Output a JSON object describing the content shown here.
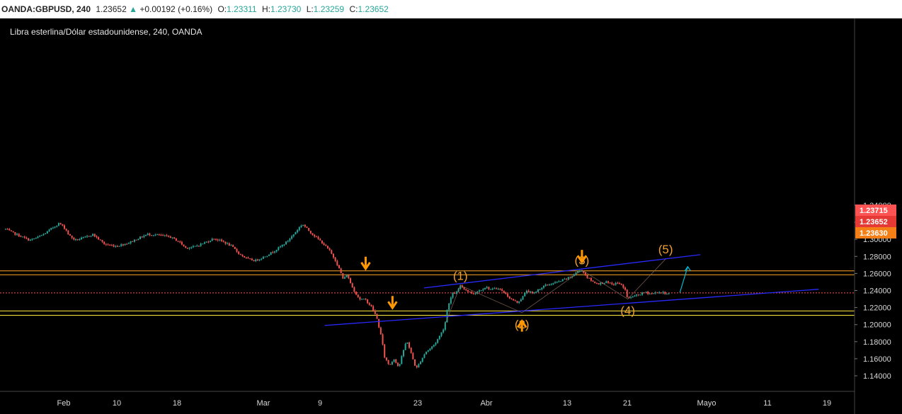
{
  "header": {
    "symbol": "OANDA:GBPUSD, 240",
    "last": "1.23652",
    "change": "+0.00192 (+0.16%)",
    "o_label": "O:",
    "o_value": "1.23311",
    "h_label": "H:",
    "h_value": "1.23730",
    "l_label": "L:",
    "l_value": "1.23259",
    "c_label": "C:",
    "c_value": "1.23652"
  },
  "chart_data": {
    "type": "candlestick",
    "title": "Libra esterlina/Dólar estadounidense, 240, OANDA",
    "ylim": [
      1.13,
      1.35
    ],
    "y_ticks": [
      "1.34000",
      "1.32000",
      "1.30000",
      "1.28000",
      "1.26000",
      "1.24000",
      "1.22000",
      "1.20000",
      "1.18000",
      "1.16000",
      "1.14000"
    ],
    "x_ticks": [
      "Feb",
      "10",
      "18",
      "Mar",
      "9",
      "23",
      "Abr",
      "13",
      "21",
      "Mayo",
      "11",
      "19"
    ],
    "grid": false,
    "price_series": [
      {
        "t": 0,
        "p": 1.312
      },
      {
        "t": 0.4,
        "p": 1.308
      },
      {
        "t": 0.9,
        "p": 1.304
      },
      {
        "t": 1.5,
        "p": 1.299
      },
      {
        "t": 2.0,
        "p": 1.302
      },
      {
        "t": 2.5,
        "p": 1.307
      },
      {
        "t": 3.0,
        "p": 1.314
      },
      {
        "t": 3.4,
        "p": 1.319
      },
      {
        "t": 3.8,
        "p": 1.312
      },
      {
        "t": 4.0,
        "p": 1.305
      },
      {
        "t": 4.4,
        "p": 1.299
      },
      {
        "t": 5.0,
        "p": 1.302
      },
      {
        "t": 5.5,
        "p": 1.306
      },
      {
        "t": 5.9,
        "p": 1.3
      },
      {
        "t": 6.3,
        "p": 1.294
      },
      {
        "t": 7.0,
        "p": 1.292
      },
      {
        "t": 7.8,
        "p": 1.296
      },
      {
        "t": 8.5,
        "p": 1.302
      },
      {
        "t": 9.0,
        "p": 1.306
      },
      {
        "t": 9.6,
        "p": 1.305
      },
      {
        "t": 10.4,
        "p": 1.303
      },
      {
        "t": 11.0,
        "p": 1.297
      },
      {
        "t": 11.4,
        "p": 1.29
      },
      {
        "t": 11.9,
        "p": 1.291
      },
      {
        "t": 12.6,
        "p": 1.296
      },
      {
        "t": 13.2,
        "p": 1.301
      },
      {
        "t": 13.8,
        "p": 1.297
      },
      {
        "t": 14.3,
        "p": 1.292
      },
      {
        "t": 14.8,
        "p": 1.283
      },
      {
        "t": 15.3,
        "p": 1.277
      },
      {
        "t": 15.8,
        "p": 1.275
      },
      {
        "t": 16.3,
        "p": 1.279
      },
      {
        "t": 16.8,
        "p": 1.284
      },
      {
        "t": 17.3,
        "p": 1.29
      },
      {
        "t": 17.8,
        "p": 1.297
      },
      {
        "t": 18.2,
        "p": 1.305
      },
      {
        "t": 18.6,
        "p": 1.314
      },
      {
        "t": 18.8,
        "p": 1.318
      },
      {
        "t": 19.1,
        "p": 1.312
      },
      {
        "t": 19.5,
        "p": 1.305
      },
      {
        "t": 20.0,
        "p": 1.297
      },
      {
        "t": 20.5,
        "p": 1.287
      },
      {
        "t": 20.9,
        "p": 1.275
      },
      {
        "t": 21.2,
        "p": 1.262
      },
      {
        "t": 21.4,
        "p": 1.252
      },
      {
        "t": 21.6,
        "p": 1.259
      },
      {
        "t": 22.0,
        "p": 1.242
      },
      {
        "t": 22.4,
        "p": 1.23
      },
      {
        "t": 22.8,
        "p": 1.229
      },
      {
        "t": 23.2,
        "p": 1.22
      },
      {
        "t": 23.5,
        "p": 1.208
      },
      {
        "t": 23.8,
        "p": 1.185
      },
      {
        "t": 24.0,
        "p": 1.162
      },
      {
        "t": 24.3,
        "p": 1.152
      },
      {
        "t": 24.6,
        "p": 1.16
      },
      {
        "t": 24.9,
        "p": 1.15
      },
      {
        "t": 25.2,
        "p": 1.17
      },
      {
        "t": 25.4,
        "p": 1.182
      },
      {
        "t": 25.7,
        "p": 1.165
      },
      {
        "t": 26.0,
        "p": 1.148
      },
      {
        "t": 26.3,
        "p": 1.158
      },
      {
        "t": 26.6,
        "p": 1.168
      },
      {
        "t": 26.9,
        "p": 1.172
      },
      {
        "t": 27.2,
        "p": 1.178
      },
      {
        "t": 27.5,
        "p": 1.187
      },
      {
        "t": 27.8,
        "p": 1.198
      },
      {
        "t": 28.0,
        "p": 1.222
      },
      {
        "t": 28.3,
        "p": 1.236
      },
      {
        "t": 28.6,
        "p": 1.238
      },
      {
        "t": 28.8,
        "p": 1.246
      },
      {
        "t": 29.2,
        "p": 1.24
      },
      {
        "t": 29.6,
        "p": 1.236
      },
      {
        "t": 30.0,
        "p": 1.24
      },
      {
        "t": 30.4,
        "p": 1.244
      },
      {
        "t": 30.8,
        "p": 1.241
      },
      {
        "t": 31.2,
        "p": 1.243
      },
      {
        "t": 31.6,
        "p": 1.237
      },
      {
        "t": 32.0,
        "p": 1.23
      },
      {
        "t": 32.4,
        "p": 1.226
      },
      {
        "t": 32.7,
        "p": 1.231
      },
      {
        "t": 33.0,
        "p": 1.24
      },
      {
        "t": 33.4,
        "p": 1.236
      },
      {
        "t": 33.8,
        "p": 1.242
      },
      {
        "t": 34.2,
        "p": 1.246
      },
      {
        "t": 34.6,
        "p": 1.248
      },
      {
        "t": 35.0,
        "p": 1.25
      },
      {
        "t": 35.4,
        "p": 1.253
      },
      {
        "t": 35.8,
        "p": 1.256
      },
      {
        "t": 36.2,
        "p": 1.262
      },
      {
        "t": 36.5,
        "p": 1.264
      },
      {
        "t": 36.8,
        "p": 1.256
      },
      {
        "t": 37.2,
        "p": 1.25
      },
      {
        "t": 37.6,
        "p": 1.248
      },
      {
        "t": 38.0,
        "p": 1.25
      },
      {
        "t": 38.4,
        "p": 1.247
      },
      {
        "t": 38.8,
        "p": 1.249
      },
      {
        "t": 39.2,
        "p": 1.243
      },
      {
        "t": 39.4,
        "p": 1.23
      },
      {
        "t": 39.7,
        "p": 1.233
      },
      {
        "t": 40.1,
        "p": 1.235
      },
      {
        "t": 40.5,
        "p": 1.238
      },
      {
        "t": 40.9,
        "p": 1.236
      },
      {
        "t": 41.3,
        "p": 1.238
      },
      {
        "t": 41.7,
        "p": 1.237
      },
      {
        "t": 42.0,
        "p": 1.2365
      }
    ],
    "price_line": {
      "value": 1.23715,
      "label": "1.23715",
      "color": "#ff5252"
    },
    "price_labels": [
      {
        "value": 1.23652,
        "label": "1.23652",
        "color": "#e53935"
      },
      {
        "value": 1.2363,
        "label": "1.23630",
        "color": "#f57f17"
      }
    ],
    "zones": [
      {
        "from": 1.2585,
        "to": 1.263,
        "color": "#ffa726"
      },
      {
        "from": 1.211,
        "to": 1.216,
        "color": "#ffeb3b"
      }
    ],
    "channel_upper": [
      {
        "t": 26.5,
        "p": 1.243
      },
      {
        "t": 44.0,
        "p": 1.282
      }
    ],
    "channel_lower": [
      {
        "t": 20.2,
        "p": 1.199
      },
      {
        "t": 51.5,
        "p": 1.2415
      }
    ],
    "waves": [
      {
        "label": "(1)",
        "t": 28.8,
        "p": 1.246
      },
      {
        "label": "(2)",
        "t": 32.7,
        "p": 1.214
      },
      {
        "label": "(3)",
        "t": 36.5,
        "p": 1.264
      },
      {
        "label": "(4)",
        "t": 39.4,
        "p": 1.23
      },
      {
        "label": "(5)",
        "t": 41.8,
        "p": 1.277
      }
    ],
    "projection": [
      {
        "t": 42.7,
        "p": 1.2375
      },
      {
        "t": 43.2,
        "p": 1.268
      }
    ],
    "arrows_down": [
      {
        "t": 22.8,
        "p": 1.263
      },
      {
        "t": 24.5,
        "p": 1.217
      },
      {
        "t": 36.5,
        "p": 1.271
      }
    ],
    "arrows_up": [
      {
        "t": 32.7,
        "p": 1.205
      }
    ],
    "colors": {
      "up": "#26a69a",
      "down": "#ef5350",
      "channel": "#2929ff",
      "projection": "#00bcd4",
      "wave": "#f0a030"
    }
  }
}
